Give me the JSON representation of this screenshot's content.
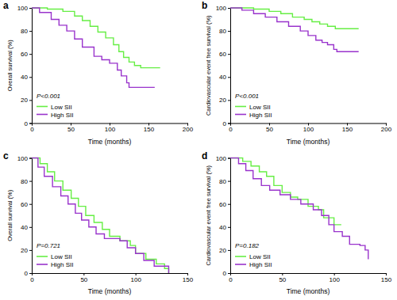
{
  "chart_data": [
    {
      "type": "line",
      "title": "a",
      "x_label": "Time (months)",
      "y_label": "Overall survival (%)",
      "annotation": "P<0.001",
      "legend": "lower left",
      "line_style": "step",
      "xlim": [
        0,
        200
      ],
      "xticks": [
        0,
        50,
        100,
        150,
        200
      ],
      "ylim": [
        0,
        100
      ],
      "yticks": [
        0,
        20,
        40,
        60,
        80,
        100
      ],
      "series": [
        {
          "name": "Low SII",
          "color": "#66ee44",
          "x": [
            0,
            20,
            40,
            55,
            65,
            75,
            85,
            95,
            105,
            112,
            118,
            125,
            132,
            140,
            165
          ],
          "values": [
            100,
            99,
            97,
            93,
            89,
            84,
            79,
            74,
            68,
            62,
            57,
            53,
            50,
            48,
            48
          ]
        },
        {
          "name": "High SII",
          "color": "#9933cc",
          "x": [
            0,
            10,
            25,
            35,
            45,
            55,
            65,
            80,
            90,
            100,
            110,
            115,
            122,
            125,
            158
          ],
          "values": [
            100,
            96,
            90,
            85,
            80,
            73,
            66,
            58,
            55,
            52,
            46,
            41,
            35,
            31,
            31
          ]
        }
      ]
    },
    {
      "type": "line",
      "title": "b",
      "x_label": "Time (months)",
      "y_label": "Cardiovascular event free survival (%)",
      "annotation": "P<0.001",
      "legend": "lower left",
      "line_style": "step",
      "xlim": [
        0,
        200
      ],
      "xticks": [
        0,
        50,
        100,
        150,
        200
      ],
      "ylim": [
        0,
        100
      ],
      "yticks": [
        0,
        20,
        40,
        60,
        80,
        100
      ],
      "series": [
        {
          "name": "Low SII",
          "color": "#66ee44",
          "x": [
            0,
            30,
            50,
            65,
            80,
            95,
            105,
            115,
            125,
            135,
            165
          ],
          "values": [
            100,
            99,
            97,
            95,
            92,
            90,
            88,
            86,
            84,
            82,
            82
          ]
        },
        {
          "name": "High SII",
          "color": "#9933cc",
          "x": [
            0,
            15,
            30,
            45,
            60,
            75,
            90,
            100,
            110,
            118,
            125,
            133,
            137,
            165
          ],
          "values": [
            100,
            98,
            95,
            92,
            88,
            84,
            80,
            76,
            72,
            70,
            68,
            64,
            62,
            62
          ]
        }
      ]
    },
    {
      "type": "line",
      "title": "c",
      "x_label": "Time (months)",
      "y_label": "Overall survival (%)",
      "annotation": "P=0.721",
      "legend": "lower left",
      "line_style": "step",
      "xlim": [
        0,
        150
      ],
      "xticks": [
        0,
        50,
        100,
        150
      ],
      "ylim": [
        0,
        100
      ],
      "yticks": [
        0,
        20,
        40,
        60,
        80,
        100
      ],
      "series": [
        {
          "name": "Low SII",
          "color": "#66ee44",
          "x": [
            0,
            8,
            15,
            22,
            30,
            38,
            45,
            52,
            60,
            68,
            75,
            85,
            95,
            100,
            110,
            120,
            128,
            132
          ],
          "values": [
            100,
            95,
            88,
            80,
            72,
            65,
            58,
            50,
            44,
            38,
            32,
            28,
            24,
            17,
            12,
            8,
            4,
            0
          ]
        },
        {
          "name": "High SII",
          "color": "#9933cc",
          "x": [
            0,
            6,
            12,
            20,
            28,
            35,
            42,
            48,
            55,
            62,
            70,
            85,
            92,
            100,
            108,
            118,
            132
          ],
          "values": [
            100,
            92,
            84,
            75,
            67,
            60,
            52,
            46,
            40,
            34,
            30,
            28,
            22,
            17,
            11,
            6,
            0
          ]
        }
      ]
    },
    {
      "type": "line",
      "title": "d",
      "x_label": "Time (months)",
      "y_label": "Cardiovascular event free survival (%)",
      "annotation": "P=0.182",
      "legend": "lower left",
      "line_style": "step",
      "xlim": [
        0,
        150
      ],
      "xticks": [
        0,
        50,
        100,
        150
      ],
      "ylim": [
        0,
        100
      ],
      "yticks": [
        0,
        20,
        40,
        60,
        80,
        100
      ],
      "series": [
        {
          "name": "Low SII",
          "color": "#66ee44",
          "x": [
            0,
            12,
            20,
            28,
            35,
            42,
            50,
            58,
            65,
            75,
            85,
            90,
            100,
            107
          ],
          "values": [
            100,
            97,
            93,
            88,
            84,
            76,
            70,
            66,
            64,
            58,
            55,
            48,
            42,
            42
          ]
        },
        {
          "name": "High SII",
          "color": "#9933cc",
          "x": [
            0,
            8,
            15,
            22,
            30,
            38,
            48,
            58,
            68,
            80,
            88,
            95,
            100,
            108,
            115,
            125,
            130,
            133
          ],
          "values": [
            100,
            95,
            89,
            82,
            76,
            72,
            68,
            64,
            60,
            55,
            50,
            42,
            36,
            32,
            25,
            24,
            20,
            12
          ]
        }
      ]
    }
  ]
}
